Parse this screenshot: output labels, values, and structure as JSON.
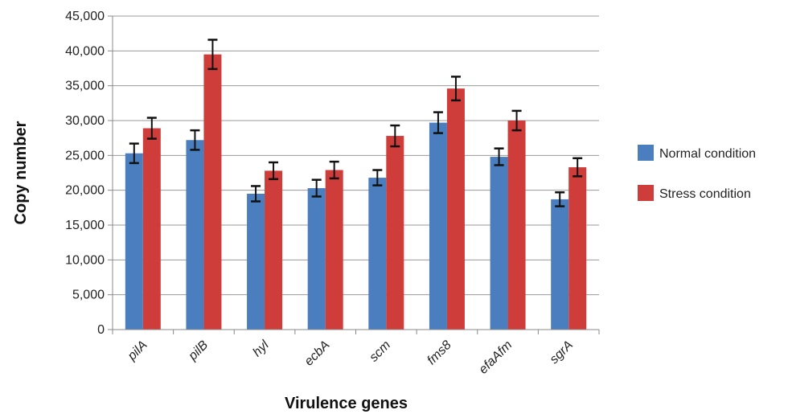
{
  "chart_data": {
    "type": "bar",
    "title": "",
    "xlabel": "Virulence genes",
    "ylabel": "Copy number",
    "categories": [
      "pilA",
      "pilB",
      "hyl",
      "ecbA",
      "scm",
      "fms8",
      "efaAfm",
      "sgrA"
    ],
    "ylim": [
      0,
      45000
    ],
    "yticks": [
      0,
      5000,
      10000,
      15000,
      20000,
      25000,
      30000,
      35000,
      40000,
      45000
    ],
    "ytick_labels": [
      "0",
      "5,000",
      "10,000",
      "15,000",
      "20,000",
      "25,000",
      "30,000",
      "35,000",
      "40,000",
      "45,000"
    ],
    "grid": true,
    "legend_position": "right",
    "series": [
      {
        "name": "Normal condition",
        "color": "#4a7ebf",
        "values": [
          25300,
          27200,
          19500,
          20300,
          21800,
          29700,
          24800,
          18700
        ],
        "errors": [
          1400,
          1400,
          1100,
          1200,
          1100,
          1500,
          1200,
          1000
        ]
      },
      {
        "name": "Stress condition",
        "color": "#cf3d3b",
        "values": [
          28900,
          39500,
          22800,
          22900,
          27800,
          34600,
          30000,
          23300
        ],
        "errors": [
          1500,
          2100,
          1200,
          1200,
          1500,
          1700,
          1400,
          1300
        ]
      }
    ]
  }
}
